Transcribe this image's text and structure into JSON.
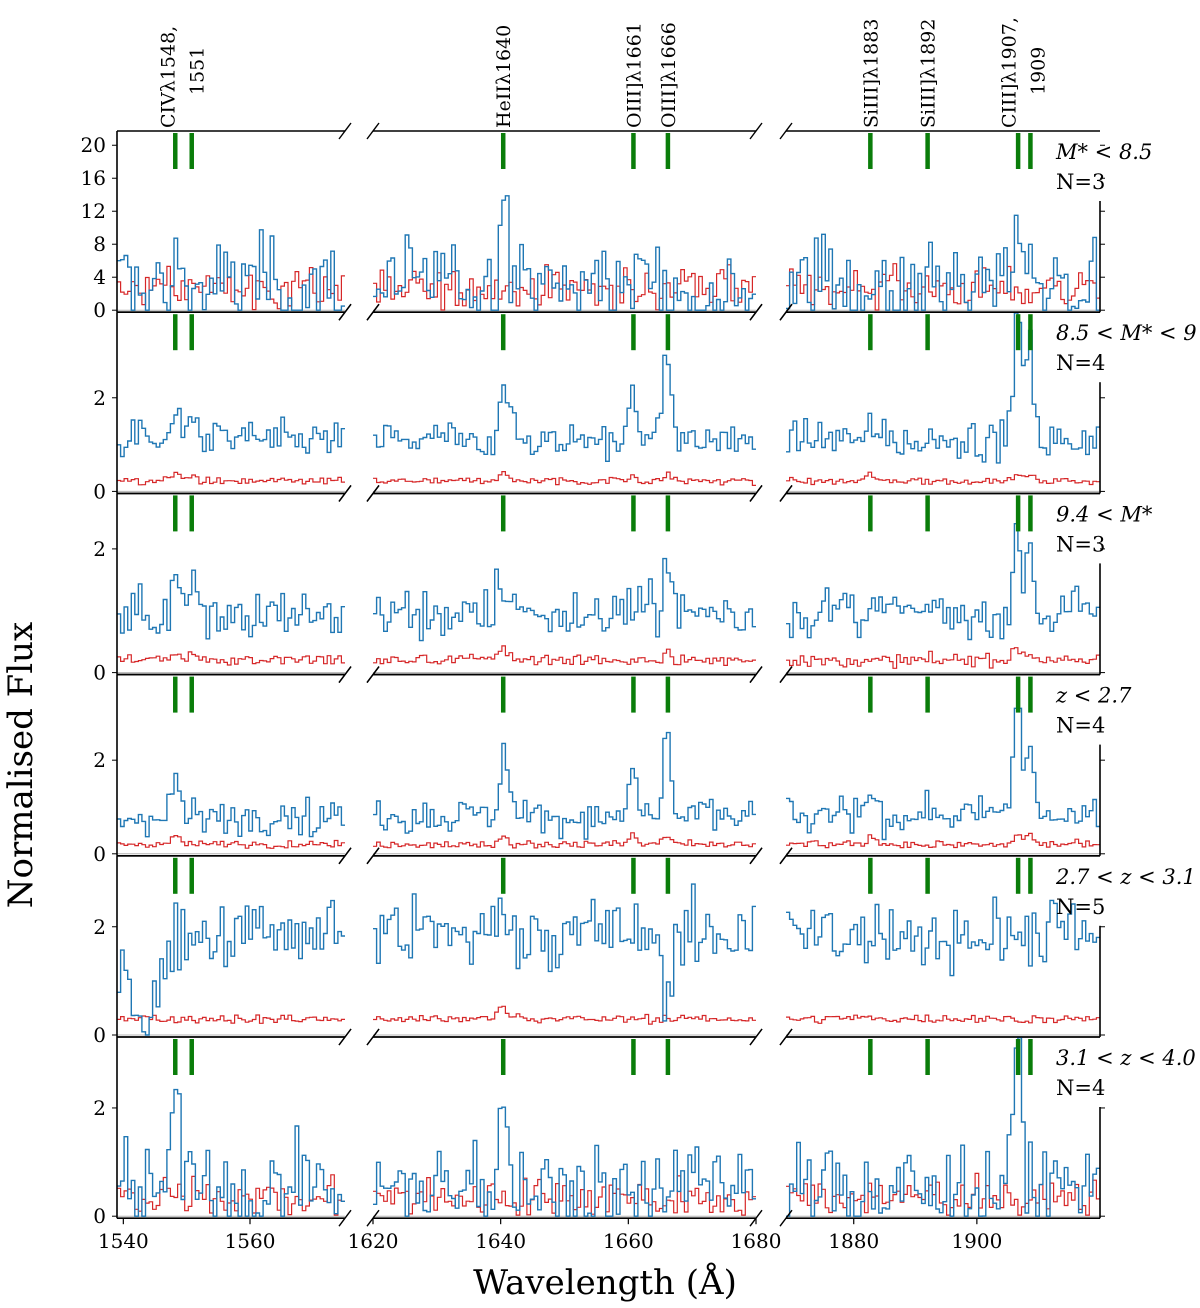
{
  "chart_data": {
    "type": "line",
    "subtype": "step-spectra, broken x-axis, 6 stacked panels",
    "ylabel": "Normalised Flux",
    "xlabel": "Wavelength (Å)",
    "x_segments": [
      {
        "xmin": 1539,
        "xmax": 1575,
        "ticks": [
          1540,
          1560
        ],
        "tick_labels": [
          "1540",
          "1560"
        ]
      },
      {
        "xmin": 1620,
        "xmax": 1680,
        "ticks": [
          1620,
          1640,
          1660,
          1680
        ],
        "tick_labels": [
          "1620",
          "1640",
          "1660",
          "1680"
        ]
      },
      {
        "xmin": 1869,
        "xmax": 1920,
        "ticks": [
          1880,
          1900
        ],
        "tick_labels": [
          "1880",
          "1900"
        ]
      }
    ],
    "lines": [
      {
        "label": "CIVλ1548,",
        "label2": "1551",
        "wavelengths": [
          1548.2,
          1550.8
        ],
        "segment": 0
      },
      {
        "label": "HeIIλ1640",
        "wavelengths": [
          1640.4
        ],
        "segment": 1
      },
      {
        "label": "OIII]λ1661",
        "wavelengths": [
          1660.8
        ],
        "segment": 1
      },
      {
        "label": "OIII]λ1666",
        "wavelengths": [
          1666.2
        ],
        "segment": 1
      },
      {
        "label": "SiIII]λ1883",
        "wavelengths": [
          1882.7
        ],
        "segment": 2
      },
      {
        "label": "SiIII]λ1892",
        "wavelengths": [
          1892.0
        ],
        "segment": 2
      },
      {
        "label": "CIII]λ1907,",
        "label2": "1909",
        "wavelengths": [
          1906.7,
          1908.7
        ],
        "segment": 2
      }
    ],
    "line_marker_color": "#0a7d0a",
    "series_colors": {
      "flux": "#1f77b4",
      "error": "#d62728",
      "zero": "#b4b4b4"
    },
    "panels": [
      {
        "label": "M* < 8.5",
        "n": "N=3",
        "ylim": [
          0,
          21
        ],
        "yticks": [
          0,
          4,
          8,
          12,
          16,
          20
        ],
        "cont": 3.0,
        "err": 2.6,
        "noise": 3.0,
        "errnoise": 1.2,
        "errpeak": 0,
        "features": [
          [
            1548.2,
            2.0,
            0.6
          ],
          [
            1640.4,
            14.0,
            0.6
          ],
          [
            1906.7,
            10.0,
            0.6
          ],
          [
            1663.7,
            3.0,
            0.3
          ]
        ]
      },
      {
        "label": "8.5 < M* < 9",
        "n": "N=4",
        "ylim": [
          0,
          3.7
        ],
        "yticks": [
          0,
          2
        ],
        "cont": 1.1,
        "err": 0.22,
        "noise": 0.2,
        "errnoise": 0.04,
        "errpeak": 0.25,
        "features": [
          [
            1548.2,
            0.6,
            0.7
          ],
          [
            1550.8,
            0.6,
            0.6
          ],
          [
            1640.4,
            1.5,
            0.7
          ],
          [
            1660.8,
            1.1,
            0.6
          ],
          [
            1666.2,
            1.7,
            0.7
          ],
          [
            1882.7,
            0.4,
            0.6
          ],
          [
            1906.7,
            2.6,
            0.7
          ],
          [
            1908.7,
            2.0,
            0.6
          ]
        ]
      },
      {
        "label": "9.4 < M*",
        "n": "N=3",
        "ylim": [
          0,
          2.8
        ],
        "yticks": [
          0,
          2
        ],
        "cont": 0.95,
        "err": 0.2,
        "noise": 0.22,
        "errnoise": 0.05,
        "errpeak": 0.25,
        "features": [
          [
            1548.2,
            0.8,
            0.6
          ],
          [
            1550.8,
            0.9,
            0.6
          ],
          [
            1640.4,
            0.5,
            1.2
          ],
          [
            1666.2,
            1.0,
            0.6
          ],
          [
            1906.7,
            1.5,
            0.6
          ],
          [
            1908.7,
            1.1,
            0.6
          ]
        ]
      },
      {
        "label": "z < 2.7",
        "n": "N=4",
        "ylim": [
          0,
          3.7
        ],
        "yticks": [
          0,
          2
        ],
        "cont": 0.8,
        "err": 0.2,
        "noise": 0.2,
        "errnoise": 0.04,
        "errpeak": 0.35,
        "features": [
          [
            1548.2,
            0.9,
            0.6
          ],
          [
            1640.4,
            1.4,
            0.6
          ],
          [
            1660.8,
            1.0,
            0.6
          ],
          [
            1666.2,
            1.8,
            0.6
          ],
          [
            1882.7,
            0.5,
            0.6
          ],
          [
            1906.7,
            2.6,
            0.6
          ],
          [
            1908.7,
            1.8,
            0.6
          ]
        ]
      },
      {
        "label": "2.7 < z < 3.1",
        "n": "N=5",
        "ylim": [
          0,
          3.2
        ],
        "yticks": [
          0,
          2
        ],
        "cont": 1.85,
        "err": 0.3,
        "noise": 0.35,
        "errnoise": 0.04,
        "errpeak": 0.3,
        "features": [
          [
            1543.5,
            -1.6,
            2.0
          ],
          [
            1640.4,
            0.6,
            1.0
          ],
          [
            1666.2,
            -1.0,
            0.8
          ]
        ]
      },
      {
        "label": "3.1 < z < 4.0",
        "n": "N=4",
        "ylim": [
          0,
          3.2
        ],
        "yticks": [
          0,
          2
        ],
        "cont": 0.5,
        "err": 0.35,
        "noise": 0.45,
        "errnoise": 0.18,
        "errpeak": 0,
        "features": [
          [
            1548.2,
            2.3,
            0.6
          ],
          [
            1640.4,
            2.0,
            0.6
          ],
          [
            1906.7,
            2.4,
            0.6
          ]
        ]
      }
    ]
  }
}
